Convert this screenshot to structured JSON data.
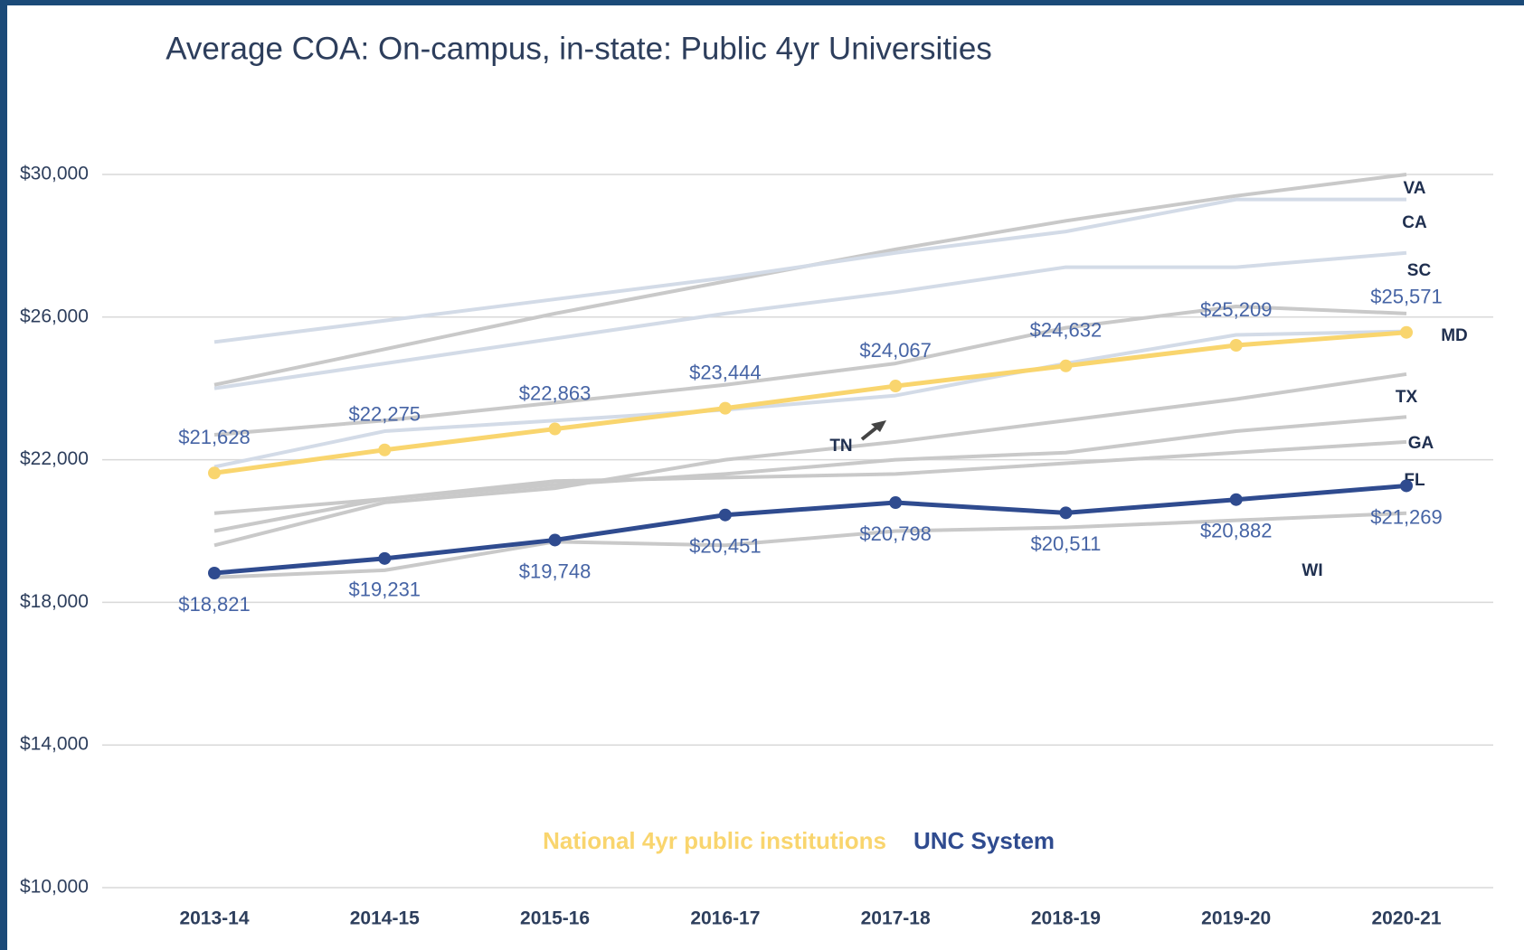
{
  "chart_data": {
    "type": "line",
    "title": "Average COA: On-campus, in-state: Public 4yr Universities",
    "categories": [
      "2013-14",
      "2014-15",
      "2015-16",
      "2016-17",
      "2017-18",
      "2018-19",
      "2019-20",
      "2020-21"
    ],
    "ylim": [
      10000,
      30000
    ],
    "yticks": [
      {
        "value": 10000,
        "label": "$10,000"
      },
      {
        "value": 14000,
        "label": "$14,000"
      },
      {
        "value": 18000,
        "label": "$18,000"
      },
      {
        "value": 22000,
        "label": "$22,000"
      },
      {
        "value": 26000,
        "label": "$26,000"
      },
      {
        "value": 30000,
        "label": "$30,000"
      }
    ],
    "grid": true,
    "series": [
      {
        "name": "VA",
        "color": "#c9c9c9",
        "values": [
          24100,
          25100,
          26100,
          27000,
          27900,
          28700,
          29400,
          30000
        ]
      },
      {
        "name": "CA",
        "color": "#d3dbe7",
        "values": [
          25300,
          25900,
          26500,
          27100,
          27800,
          28400,
          29300,
          29300
        ]
      },
      {
        "name": "SC",
        "color": "#d3dbe7",
        "values": [
          24000,
          24700,
          25400,
          26100,
          26700,
          27400,
          27400,
          27800
        ]
      },
      {
        "name": "MD",
        "color": "#c9c9c9",
        "values": [
          22700,
          23100,
          23600,
          24100,
          24700,
          25700,
          26300,
          26100
        ]
      },
      {
        "name": "TX",
        "color": "#c9c9c9",
        "values": [
          19600,
          20800,
          21200,
          22000,
          22500,
          23100,
          23700,
          24400
        ]
      },
      {
        "name": "GA",
        "color": "#c9c9c9",
        "values": [
          20000,
          20900,
          21300,
          21600,
          22000,
          22200,
          22800,
          23200
        ]
      },
      {
        "name": "FL",
        "color": "#c9c9c9",
        "values": [
          20500,
          20900,
          21400,
          21500,
          21600,
          21900,
          22200,
          22500
        ]
      },
      {
        "name": "WI",
        "color": "#c9c9c9",
        "values": [
          18700,
          18900,
          19700,
          19600,
          20000,
          20100,
          20300,
          20500
        ]
      },
      {
        "name": "TN",
        "color": "#d3dbe7",
        "values": [
          21800,
          22800,
          23100,
          23400,
          23800,
          24700,
          25500,
          25600
        ]
      },
      {
        "name": "National 4yr public institutions",
        "color": "#f9d56e",
        "values": [
          21628,
          22275,
          22863,
          23444,
          24067,
          24632,
          25209,
          25571
        ],
        "value_labels": [
          "$21,628",
          "$22,275",
          "$22,863",
          "$23,444",
          "$24,067",
          "$24,632",
          "$25,209",
          "$25,571"
        ]
      },
      {
        "name": "UNC System",
        "color": "#2f4b8f",
        "values": [
          18821,
          19231,
          19748,
          20451,
          20798,
          20511,
          20882,
          21269
        ],
        "value_labels": [
          "$18,821",
          "$19,231",
          "$19,748",
          "$20,451",
          "$20,798",
          "$20,511",
          "$20,882",
          "$21,269"
        ]
      }
    ]
  }
}
